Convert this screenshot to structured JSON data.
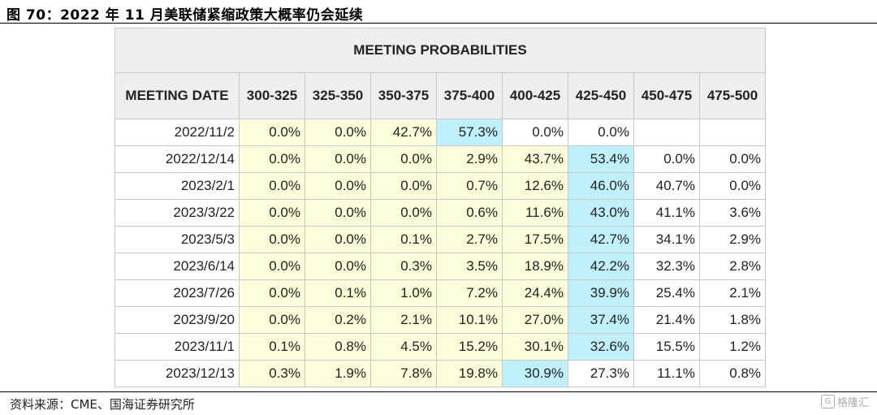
{
  "figure": {
    "title": "图 70：2022 年 11 月美联储紧缩政策大概率仍会延续",
    "source": "资料来源：CME、国海证券研究所",
    "watermark": "格隆汇"
  },
  "colors": {
    "highlight_yellow": "#fdfddb",
    "highlight_blue": "#bff0fb",
    "header_gray": "#eeeeee"
  },
  "chart_data": {
    "type": "table",
    "title": "MEETING PROBABILITIES",
    "columns": [
      "MEETING DATE",
      "300-325",
      "325-350",
      "350-375",
      "375-400",
      "400-425",
      "425-450",
      "450-475",
      "475-500"
    ],
    "rows": [
      {
        "date": "2022/11/2",
        "values": [
          "0.0%",
          "0.0%",
          "42.7%",
          "57.3%",
          "0.0%",
          "0.0%",
          "",
          ""
        ],
        "shading": [
          "y",
          "y",
          "y",
          "b",
          "w",
          "w",
          "w",
          "w"
        ]
      },
      {
        "date": "2022/12/14",
        "values": [
          "0.0%",
          "0.0%",
          "0.0%",
          "2.9%",
          "43.7%",
          "53.4%",
          "0.0%",
          "0.0%"
        ],
        "shading": [
          "y",
          "y",
          "y",
          "y",
          "y",
          "b",
          "w",
          "w"
        ]
      },
      {
        "date": "2023/2/1",
        "values": [
          "0.0%",
          "0.0%",
          "0.0%",
          "0.7%",
          "12.6%",
          "46.0%",
          "40.7%",
          "0.0%"
        ],
        "shading": [
          "y",
          "y",
          "y",
          "y",
          "y",
          "b",
          "w",
          "w"
        ]
      },
      {
        "date": "2023/3/22",
        "values": [
          "0.0%",
          "0.0%",
          "0.0%",
          "0.6%",
          "11.6%",
          "43.0%",
          "41.1%",
          "3.6%"
        ],
        "shading": [
          "y",
          "y",
          "y",
          "y",
          "y",
          "b",
          "w",
          "w"
        ]
      },
      {
        "date": "2023/5/3",
        "values": [
          "0.0%",
          "0.0%",
          "0.1%",
          "2.7%",
          "17.5%",
          "42.7%",
          "34.1%",
          "2.9%"
        ],
        "shading": [
          "y",
          "y",
          "y",
          "y",
          "y",
          "b",
          "w",
          "w"
        ]
      },
      {
        "date": "2023/6/14",
        "values": [
          "0.0%",
          "0.0%",
          "0.3%",
          "3.5%",
          "18.9%",
          "42.2%",
          "32.3%",
          "2.8%"
        ],
        "shading": [
          "y",
          "y",
          "y",
          "y",
          "y",
          "b",
          "w",
          "w"
        ]
      },
      {
        "date": "2023/7/26",
        "values": [
          "0.0%",
          "0.1%",
          "1.0%",
          "7.2%",
          "24.4%",
          "39.9%",
          "25.4%",
          "2.1%"
        ],
        "shading": [
          "y",
          "y",
          "y",
          "y",
          "y",
          "b",
          "w",
          "w"
        ]
      },
      {
        "date": "2023/9/20",
        "values": [
          "0.0%",
          "0.2%",
          "2.1%",
          "10.1%",
          "27.0%",
          "37.4%",
          "21.4%",
          "1.8%"
        ],
        "shading": [
          "y",
          "y",
          "y",
          "y",
          "y",
          "b",
          "w",
          "w"
        ]
      },
      {
        "date": "2023/11/1",
        "values": [
          "0.1%",
          "0.8%",
          "4.5%",
          "15.2%",
          "30.1%",
          "32.6%",
          "15.5%",
          "1.2%"
        ],
        "shading": [
          "y",
          "y",
          "y",
          "y",
          "y",
          "b",
          "w",
          "w"
        ]
      },
      {
        "date": "2023/12/13",
        "values": [
          "0.3%",
          "1.9%",
          "7.8%",
          "19.8%",
          "30.9%",
          "27.3%",
          "11.1%",
          "0.8%"
        ],
        "shading": [
          "y",
          "y",
          "y",
          "y",
          "b",
          "w",
          "w",
          "w"
        ]
      }
    ]
  }
}
